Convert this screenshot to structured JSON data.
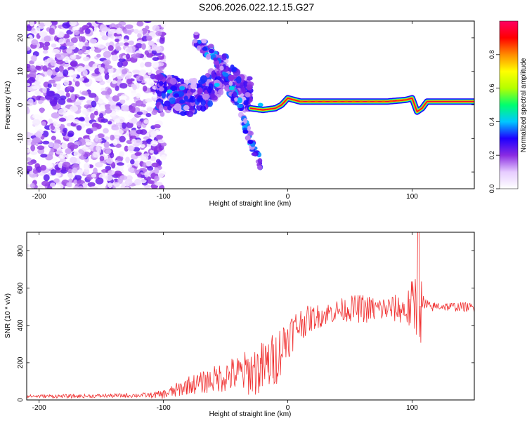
{
  "page_title": "S206.2026.022.12.15.G27",
  "chart_data": [
    {
      "type": "heatmap",
      "title": "S206.2026.022.12.15.G27",
      "xlabel": "Height of straight line (km)",
      "ylabel": "Frequency (Hz)",
      "xlim": [
        -210,
        150
      ],
      "ylim": [
        -25,
        25
      ],
      "xticks": [
        -200,
        -100,
        0,
        100
      ],
      "yticks": [
        -20,
        -10,
        0,
        10,
        20
      ],
      "colorbar": {
        "label": "Normalized spectral amplitude",
        "range": [
          0,
          1
        ],
        "ticks": [
          0.0,
          0.2,
          0.4,
          0.6,
          0.8
        ],
        "colormap": [
          "#ffffff",
          "#e6ccff",
          "#8a2be2",
          "#1e00ff",
          "#00c8ff",
          "#00ff6e",
          "#b4ff00",
          "#ffff00",
          "#ff8c00",
          "#ff0000",
          "#ff0064"
        ]
      },
      "features": {
        "noise_region_km": [
          -210,
          -105
        ],
        "noise_amplitude": 0.25,
        "descending_branch": {
          "x": [
            -75,
            -60,
            -45,
            -35,
            -28,
            -22
          ],
          "y": [
            20,
            15,
            7,
            -5,
            -12,
            -18
          ]
        },
        "scatter_cluster": {
          "x": [
            -105,
            -90,
            -80,
            -70,
            -60,
            -50,
            -40,
            -30
          ],
          "y": [
            4,
            3,
            2,
            3,
            6,
            10,
            4,
            3
          ]
        },
        "carrier_line": {
          "x": [
            -30,
            -20,
            -10,
            -5,
            0,
            5,
            10,
            20,
            40,
            60,
            80,
            95,
            100,
            104,
            108,
            112,
            130,
            150
          ],
          "y": [
            -1,
            -1.5,
            -1,
            0,
            2,
            1.5,
            1,
            1,
            1,
            1,
            1,
            1.5,
            2,
            -2,
            -1,
            1,
            1,
            1
          ],
          "amplitude": 0.95
        }
      }
    },
    {
      "type": "line",
      "xlabel": "Height of straight line (km)",
      "ylabel": "SNR (10 * v/v)",
      "xlim": [
        -210,
        150
      ],
      "ylim": [
        0,
        900
      ],
      "xticks": [
        -200,
        -100,
        0,
        100
      ],
      "yticks": [
        0,
        200,
        400,
        600,
        800
      ],
      "series": [
        {
          "name": "SNR",
          "color": "#f03030",
          "x": [
            -210,
            -190,
            -170,
            -150,
            -130,
            -110,
            -100,
            -90,
            -80,
            -70,
            -60,
            -50,
            -40,
            -30,
            -20,
            -10,
            -5,
            0,
            10,
            20,
            30,
            40,
            50,
            60,
            70,
            80,
            90,
            95,
            100,
            105,
            108,
            110,
            115,
            120,
            130,
            140,
            150
          ],
          "y": [
            20,
            20,
            20,
            22,
            24,
            26,
            30,
            50,
            80,
            90,
            110,
            130,
            140,
            150,
            170,
            220,
            280,
            340,
            410,
            440,
            460,
            480,
            490,
            490,
            485,
            490,
            490,
            480,
            500,
            540,
            460,
            510,
            495,
            505,
            500,
            500,
            495
          ],
          "spread": [
            8,
            10,
            10,
            10,
            12,
            14,
            25,
            40,
            50,
            60,
            70,
            90,
            100,
            130,
            150,
            150,
            140,
            120,
            90,
            70,
            60,
            60,
            70,
            80,
            70,
            70,
            80,
            90,
            150,
            250,
            180,
            50,
            25,
            25,
            25,
            25,
            25
          ]
        }
      ]
    }
  ]
}
